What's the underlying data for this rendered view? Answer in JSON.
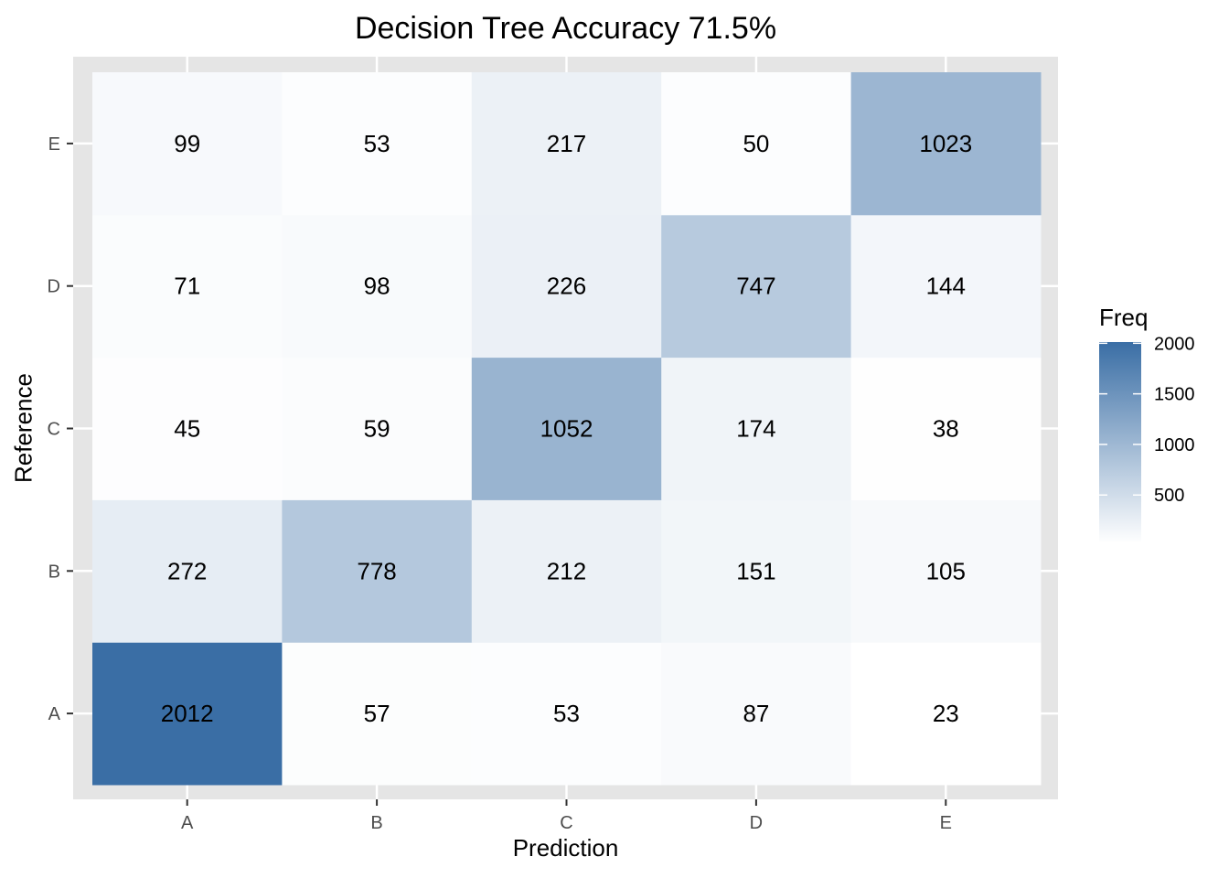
{
  "chart_data": {
    "type": "heatmap",
    "title": "Decision Tree Accuracy 71.5%",
    "xlabel": "Prediction",
    "ylabel": "Reference",
    "x_categories": [
      "A",
      "B",
      "C",
      "D",
      "E"
    ],
    "y_categories": [
      "A",
      "B",
      "C",
      "D",
      "E"
    ],
    "values": [
      [
        2012,
        57,
        53,
        87,
        23
      ],
      [
        272,
        778,
        212,
        151,
        105
      ],
      [
        45,
        59,
        1052,
        174,
        38
      ],
      [
        71,
        98,
        226,
        747,
        144
      ],
      [
        99,
        53,
        217,
        50,
        1023
      ]
    ],
    "legend": {
      "title": "Freq",
      "ticks": [
        500,
        1000,
        1500,
        2000
      ],
      "range": [
        23,
        2012
      ],
      "low_color": "#ffffff",
      "high_color": "#3a6ea5",
      "placement": "right"
    },
    "panel_background": "#e5e5e5",
    "grid": true
  }
}
